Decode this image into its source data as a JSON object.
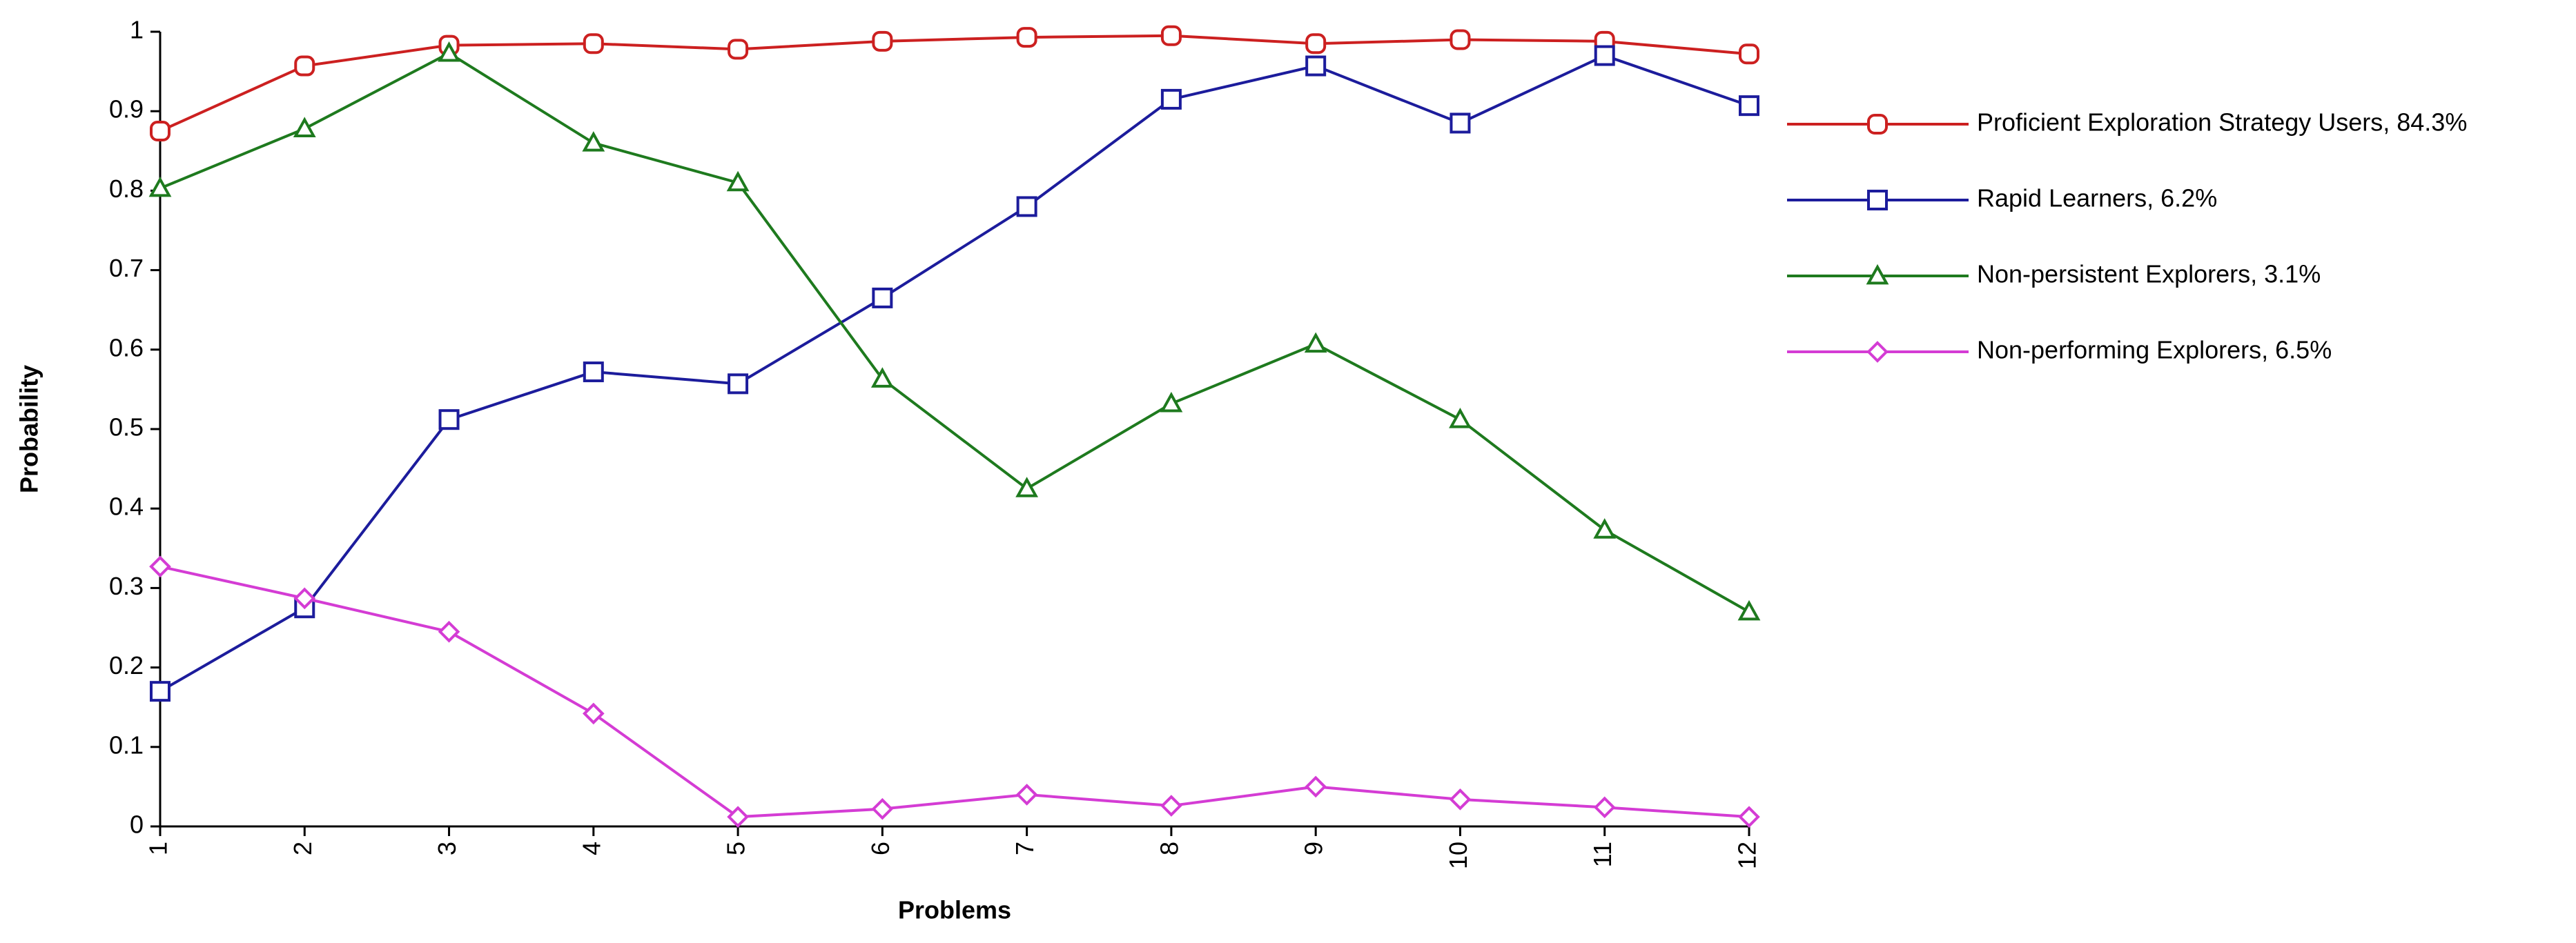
{
  "chart_data": {
    "type": "line",
    "xlabel": "Problems",
    "ylabel": "Probability",
    "x": [
      1,
      2,
      3,
      4,
      5,
      6,
      7,
      8,
      9,
      10,
      11,
      12
    ],
    "xlim": [
      1,
      12
    ],
    "xticks": [
      1,
      2,
      3,
      4,
      5,
      6,
      7,
      8,
      9,
      10,
      11,
      12
    ],
    "ylim": [
      0,
      1
    ],
    "yticks": [
      0,
      0.1,
      0.2,
      0.3,
      0.4,
      0.5,
      0.6,
      0.7,
      0.8,
      0.9,
      1
    ],
    "grid": false,
    "legend": "right",
    "series": [
      {
        "name": "Proficient Exploration Strategy Users, 84.3%",
        "color": "#cc2020",
        "marker": "circle",
        "values": [
          0.875,
          0.957,
          0.983,
          0.985,
          0.978,
          0.988,
          0.993,
          0.995,
          0.985,
          0.99,
          0.988,
          0.972
        ]
      },
      {
        "name": "Rapid Learners, 6.2%",
        "color": "#1c1c9c",
        "marker": "square",
        "values": [
          0.17,
          0.275,
          0.512,
          0.572,
          0.557,
          0.665,
          0.78,
          0.915,
          0.957,
          0.885,
          0.97,
          0.907
        ]
      },
      {
        "name": "Non-persistent Explorers, 3.1%",
        "color": "#1e7a1e",
        "marker": "triangle",
        "values": [
          0.803,
          0.878,
          0.973,
          0.86,
          0.81,
          0.563,
          0.425,
          0.532,
          0.607,
          0.512,
          0.373,
          0.27
        ]
      },
      {
        "name": "Non-performing Explorers, 6.5%",
        "color": "#d43cd4",
        "marker": "diamond",
        "values": [
          0.327,
          0.287,
          0.245,
          0.142,
          0.012,
          0.022,
          0.04,
          0.026,
          0.05,
          0.034,
          0.024,
          0.012
        ]
      }
    ]
  }
}
